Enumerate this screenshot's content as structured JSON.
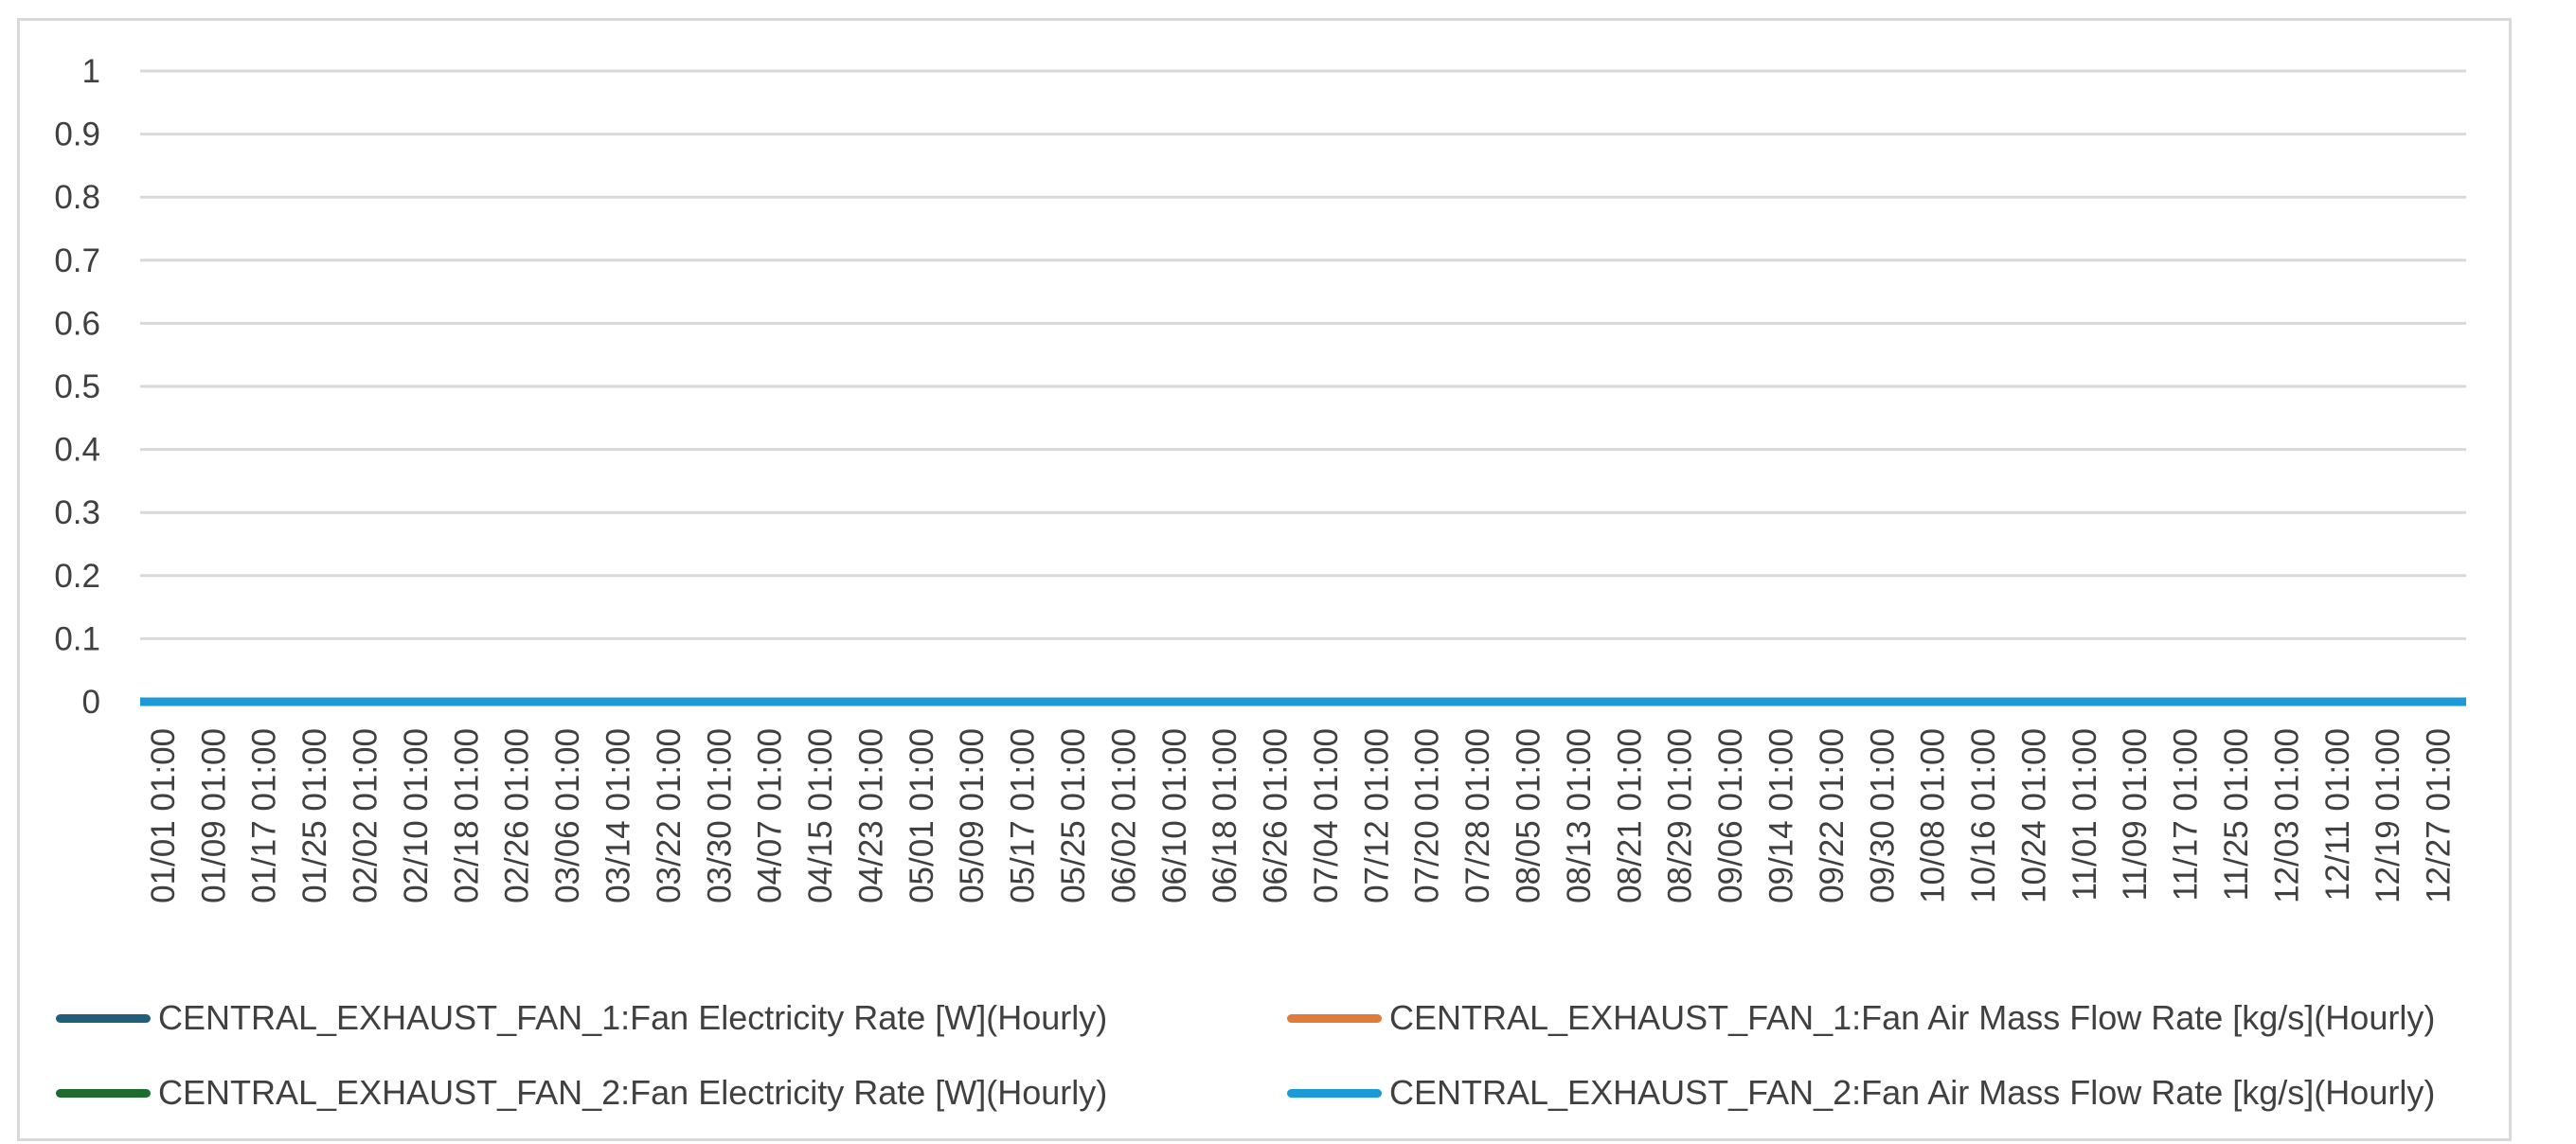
{
  "chart_data": {
    "type": "line",
    "title": "",
    "xlabel": "",
    "ylabel": "",
    "ylim": [
      0,
      1
    ],
    "yticks": [
      "0",
      "0.1",
      "0.2",
      "0.3",
      "0.4",
      "0.5",
      "0.6",
      "0.7",
      "0.8",
      "0.9",
      "1"
    ],
    "grid": true,
    "legend_position": "bottom",
    "categories": [
      "01/01 01:00",
      "01/09 01:00",
      "01/17 01:00",
      "01/25 01:00",
      "02/02 01:00",
      "02/10 01:00",
      "02/18 01:00",
      "02/26 01:00",
      "03/06 01:00",
      "03/14 01:00",
      "03/22 01:00",
      "03/30 01:00",
      "04/07 01:00",
      "04/15 01:00",
      "04/23 01:00",
      "05/01 01:00",
      "05/09 01:00",
      "05/17 01:00",
      "05/25 01:00",
      "06/02 01:00",
      "06/10 01:00",
      "06/18 01:00",
      "06/26 01:00",
      "07/04 01:00",
      "07/12 01:00",
      "07/20 01:00",
      "07/28 01:00",
      "08/05 01:00",
      "08/13 01:00",
      "08/21 01:00",
      "08/29 01:00",
      "09/06 01:00",
      "09/14 01:00",
      "09/22 01:00",
      "09/30 01:00",
      "10/08 01:00",
      "10/16 01:00",
      "10/24 01:00",
      "11/01 01:00",
      "11/09 01:00",
      "11/17 01:00",
      "11/25 01:00",
      "12/03 01:00",
      "12/11 01:00",
      "12/19 01:00",
      "12/27 01:00"
    ],
    "series": [
      {
        "name": "CENTRAL_EXHAUST_FAN_1:Fan Electricity Rate [W](Hourly)",
        "color": "#1f5f7a",
        "values": [
          0,
          0,
          0,
          0,
          0,
          0,
          0,
          0,
          0,
          0,
          0,
          0,
          0,
          0,
          0,
          0,
          0,
          0,
          0,
          0,
          0,
          0,
          0,
          0,
          0,
          0,
          0,
          0,
          0,
          0,
          0,
          0,
          0,
          0,
          0,
          0,
          0,
          0,
          0,
          0,
          0,
          0,
          0,
          0,
          0,
          0
        ]
      },
      {
        "name": "CENTRAL_EXHAUST_FAN_1:Fan Air Mass Flow Rate [kg/s](Hourly)",
        "color": "#e07b39",
        "values": [
          0,
          0,
          0,
          0,
          0,
          0,
          0,
          0,
          0,
          0,
          0,
          0,
          0,
          0,
          0,
          0,
          0,
          0,
          0,
          0,
          0,
          0,
          0,
          0,
          0,
          0,
          0,
          0,
          0,
          0,
          0,
          0,
          0,
          0,
          0,
          0,
          0,
          0,
          0,
          0,
          0,
          0,
          0,
          0,
          0,
          0
        ]
      },
      {
        "name": "CENTRAL_EXHAUST_FAN_2:Fan Electricity Rate [W](Hourly)",
        "color": "#1e6b2e",
        "values": [
          0,
          0,
          0,
          0,
          0,
          0,
          0,
          0,
          0,
          0,
          0,
          0,
          0,
          0,
          0,
          0,
          0,
          0,
          0,
          0,
          0,
          0,
          0,
          0,
          0,
          0,
          0,
          0,
          0,
          0,
          0,
          0,
          0,
          0,
          0,
          0,
          0,
          0,
          0,
          0,
          0,
          0,
          0,
          0,
          0,
          0
        ]
      },
      {
        "name": "CENTRAL_EXHAUST_FAN_2:Fan Air Mass Flow Rate [kg/s](Hourly)",
        "color": "#1a9ad6",
        "values": [
          0,
          0,
          0,
          0,
          0,
          0,
          0,
          0,
          0,
          0,
          0,
          0,
          0,
          0,
          0,
          0,
          0,
          0,
          0,
          0,
          0,
          0,
          0,
          0,
          0,
          0,
          0,
          0,
          0,
          0,
          0,
          0,
          0,
          0,
          0,
          0,
          0,
          0,
          0,
          0,
          0,
          0,
          0,
          0,
          0,
          0
        ]
      }
    ]
  }
}
